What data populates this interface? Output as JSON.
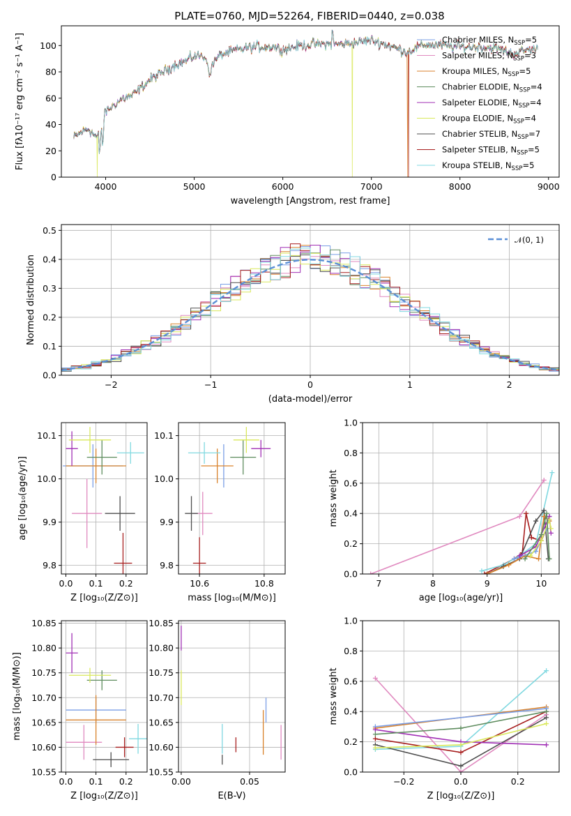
{
  "title": "PLATE=0760, MJD=52264, FIBERID=0440, z=0.038",
  "legend": [
    {
      "name": "Chabrier MILES, N",
      "sub": "SSP",
      "suffix": "=5",
      "color": "#7a9ee6"
    },
    {
      "name": "Salpeter MILES, N",
      "sub": "SSP",
      "suffix": "=3",
      "color": "#e089bf"
    },
    {
      "name": "Kroupa MILES, N",
      "sub": "SSP",
      "suffix": "=5",
      "color": "#d9822b"
    },
    {
      "name": "Chabrier ELODIE, N",
      "sub": "SSP",
      "suffix": "=4",
      "color": "#5e8c5e"
    },
    {
      "name": "Salpeter ELODIE, N",
      "sub": "SSP",
      "suffix": "=4",
      "color": "#a02fb5"
    },
    {
      "name": "Kroupa ELODIE, N",
      "sub": "SSP",
      "suffix": "=4",
      "color": "#d9e85a"
    },
    {
      "name": "Chabrier STELIB, N",
      "sub": "SSP",
      "suffix": "=7",
      "color": "#4d4d4d"
    },
    {
      "name": "Salpeter STELIB, N",
      "sub": "SSP",
      "suffix": "=5",
      "color": "#a61c1c"
    },
    {
      "name": "Kroupa STELIB, N",
      "sub": "SSP",
      "suffix": "=5",
      "color": "#7fd8e0"
    }
  ],
  "chart_data": [
    {
      "type": "line",
      "xlabel": "wavelength [Angstrom, rest frame]",
      "ylabel": "Flux [fλ10⁻¹⁷ erg cm⁻² s⁻¹ A⁻¹]",
      "xlim": [
        3500,
        9120
      ],
      "ylim": [
        0,
        115
      ],
      "xticks": [
        "4000",
        "5000",
        "6000",
        "7000",
        "8000",
        "9000"
      ],
      "yticks": [
        "0",
        "20",
        "40",
        "60",
        "80",
        "100"
      ],
      "spectrum_anchors": [
        [
          3640,
          30
        ],
        [
          3700,
          33
        ],
        [
          3800,
          37
        ],
        [
          3900,
          30
        ],
        [
          3950,
          35
        ],
        [
          4000,
          50
        ],
        [
          4100,
          55
        ],
        [
          4200,
          60
        ],
        [
          4300,
          62
        ],
        [
          4400,
          68
        ],
        [
          4500,
          74
        ],
        [
          4600,
          78
        ],
        [
          4700,
          82
        ],
        [
          4800,
          86
        ],
        [
          4900,
          88
        ],
        [
          5000,
          92
        ],
        [
          5100,
          92
        ],
        [
          5200,
          86
        ],
        [
          5300,
          93
        ],
        [
          5500,
          97
        ],
        [
          5700,
          99
        ],
        [
          5900,
          99
        ],
        [
          6000,
          97
        ],
        [
          6200,
          100
        ],
        [
          6400,
          101
        ],
        [
          6600,
          101
        ],
        [
          6800,
          102
        ],
        [
          7000,
          104
        ],
        [
          7200,
          100
        ],
        [
          7400,
          95
        ],
        [
          7600,
          101
        ],
        [
          7800,
          100
        ],
        [
          8000,
          99
        ],
        [
          8200,
          99
        ],
        [
          8400,
          98
        ],
        [
          8600,
          94
        ],
        [
          8800,
          97
        ],
        [
          8880,
          97
        ]
      ],
      "dropouts": [
        {
          "series": "Kroupa ELODIE",
          "at": 3905
        },
        {
          "series": "Kroupa ELODIE",
          "at": 6785
        },
        {
          "series": "Kroupa MILES",
          "at": 7410
        },
        {
          "series": "Salpeter STELIB",
          "at": 7420
        }
      ]
    },
    {
      "type": "histogram",
      "xlabel": "(data-model)/error",
      "ylabel": "Normed distribution",
      "xlim": [
        -2.5,
        2.5
      ],
      "ylim": [
        0,
        0.52
      ],
      "xticks": [
        "−2",
        "−1",
        "0",
        "1",
        "2"
      ],
      "yticks": [
        "0.0",
        "0.1",
        "0.2",
        "0.3",
        "0.4",
        "0.5"
      ],
      "bin_width": 0.1,
      "reference_label": "𝒩(0, 1)",
      "reference_color": "#5a8fd6"
    },
    {
      "type": "scatter",
      "xlabel": "Z [log₁₀(Z/Z⊙)]",
      "ylabel": "age  [log₁₀(age/yr)]",
      "xlim": [
        -0.015,
        0.27
      ],
      "ylim": [
        9.78,
        10.13
      ],
      "xticks": [
        "0.0",
        "0.1",
        "0.2"
      ],
      "yticks": [
        "9.8",
        "9.9",
        "10.0",
        "10.1"
      ],
      "points": [
        {
          "x": 0.09,
          "y": 10.03,
          "ex": 0.1,
          "ey": 0.05,
          "color": "#7a9ee6"
        },
        {
          "x": 0.07,
          "y": 9.92,
          "ex": 0.05,
          "ey": 0.08,
          "color": "#e089bf"
        },
        {
          "x": 0.1,
          "y": 10.03,
          "ex": 0.1,
          "ey": 0.04,
          "color": "#d9822b"
        },
        {
          "x": 0.12,
          "y": 10.05,
          "ex": 0.05,
          "ey": 0.04,
          "color": "#5e8c5e"
        },
        {
          "x": 0.02,
          "y": 10.07,
          "ex": 0.02,
          "ey": 0.04,
          "color": "#a02fb5"
        },
        {
          "x": 0.08,
          "y": 10.09,
          "ex": 0.07,
          "ey": 0.03,
          "color": "#d9e85a"
        },
        {
          "x": 0.18,
          "y": 9.92,
          "ex": 0.05,
          "ey": 0.04,
          "color": "#4d4d4d"
        },
        {
          "x": 0.19,
          "y": 9.805,
          "ex": 0.03,
          "ey": 0.07,
          "color": "#a61c1c"
        },
        {
          "x": 0.215,
          "y": 10.06,
          "ex": 0.045,
          "ey": 0.025,
          "color": "#7fd8e0"
        }
      ]
    },
    {
      "type": "scatter",
      "xlabel": "mass [log₁₀(M/M⊙)]",
      "ylabel": "",
      "xlim": [
        10.535,
        10.865
      ],
      "ylim": [
        9.78,
        10.13
      ],
      "xticks": [
        "10.6",
        "10.8"
      ],
      "yticks": [
        "9.8",
        "9.9",
        "10.0",
        "10.1"
      ],
      "points": [
        {
          "x": 10.675,
          "y": 10.03,
          "ex": 0.0,
          "ey": 0.05,
          "color": "#7a9ee6"
        },
        {
          "x": 10.61,
          "y": 9.92,
          "ex": 0.03,
          "ey": 0.05,
          "color": "#e089bf"
        },
        {
          "x": 10.655,
          "y": 10.03,
          "ex": 0.05,
          "ey": 0.04,
          "color": "#d9822b"
        },
        {
          "x": 10.735,
          "y": 10.05,
          "ex": 0.04,
          "ey": 0.04,
          "color": "#5e8c5e"
        },
        {
          "x": 10.79,
          "y": 10.07,
          "ex": 0.03,
          "ey": 0.02,
          "color": "#a02fb5"
        },
        {
          "x": 10.745,
          "y": 10.09,
          "ex": 0.04,
          "ey": 0.03,
          "color": "#d9e85a"
        },
        {
          "x": 10.575,
          "y": 9.92,
          "ex": 0.02,
          "ey": 0.04,
          "color": "#4d4d4d"
        },
        {
          "x": 10.6,
          "y": 9.805,
          "ex": 0.02,
          "ey": 0.06,
          "color": "#a61c1c"
        },
        {
          "x": 10.615,
          "y": 10.06,
          "ex": 0.05,
          "ey": 0.025,
          "color": "#7fd8e0"
        }
      ]
    },
    {
      "type": "line",
      "xlabel": "age  [log₁₀(age/yr)]",
      "ylabel": "mass weight",
      "xlim": [
        6.7,
        10.33
      ],
      "ylim": [
        0,
        1
      ],
      "xticks": [
        "7",
        "8",
        "9",
        "10"
      ],
      "yticks": [
        "0.0",
        "0.2",
        "0.4",
        "0.6",
        "0.8",
        "1.0"
      ],
      "series": [
        {
          "name": "Salpeter MILES",
          "color": "#e089bf",
          "points": [
            [
              6.85,
              0.0
            ],
            [
              9.6,
              0.38
            ],
            [
              10.05,
              0.62
            ]
          ]
        },
        {
          "name": "Salpeter STELIB",
          "color": "#a61c1c",
          "points": [
            [
              8.95,
              0.0
            ],
            [
              9.5,
              0.1
            ],
            [
              9.65,
              0.14
            ],
            [
              9.72,
              0.4
            ],
            [
              9.82,
              0.24
            ],
            [
              10.0,
              0.22
            ],
            [
              10.1,
              0.3
            ]
          ]
        },
        {
          "name": "Kroupa STELIB",
          "color": "#7fd8e0",
          "points": [
            [
              8.9,
              0.02
            ],
            [
              9.3,
              0.06
            ],
            [
              9.6,
              0.12
            ],
            [
              9.9,
              0.2
            ],
            [
              10.2,
              0.67
            ]
          ]
        },
        {
          "name": "Chabrier STELIB",
          "color": "#4d4d4d",
          "points": [
            [
              9.0,
              0.0
            ],
            [
              9.3,
              0.05
            ],
            [
              9.6,
              0.1
            ],
            [
              9.9,
              0.35
            ],
            [
              10.05,
              0.42
            ],
            [
              10.13,
              0.1
            ]
          ]
        },
        {
          "name": "Kroupa MILES",
          "color": "#d9822b",
          "points": [
            [
              9.0,
              0.0
            ],
            [
              9.4,
              0.06
            ],
            [
              9.7,
              0.12
            ],
            [
              9.95,
              0.1
            ],
            [
              10.05,
              0.38
            ],
            [
              10.15,
              0.35
            ]
          ]
        },
        {
          "name": "Chabrier MILES",
          "color": "#7a9ee6",
          "points": [
            [
              9.5,
              0.1
            ],
            [
              9.9,
              0.15
            ],
            [
              10.1,
              0.3
            ],
            [
              10.15,
              0.38
            ]
          ]
        },
        {
          "name": "Salpeter ELODIE",
          "color": "#a02fb5",
          "points": [
            [
              9.6,
              0.12
            ],
            [
              9.9,
              0.18
            ],
            [
              10.15,
              0.38
            ],
            [
              10.18,
              0.27
            ]
          ]
        },
        {
          "name": "Kroupa ELODIE",
          "color": "#d9e85a",
          "points": [
            [
              9.8,
              0.12
            ],
            [
              10.0,
              0.22
            ],
            [
              10.15,
              0.36
            ],
            [
              10.18,
              0.3
            ]
          ]
        },
        {
          "name": "Chabrier ELODIE",
          "color": "#5e8c5e",
          "points": [
            [
              9.7,
              0.1
            ],
            [
              10.0,
              0.26
            ],
            [
              10.1,
              0.4
            ],
            [
              10.15,
              0.1
            ]
          ]
        }
      ]
    },
    {
      "type": "scatter",
      "xlabel": "Z [log₁₀(Z/Z⊙)]",
      "ylabel": "mass [log₁₀(M/M⊙)]",
      "xlim": [
        -0.015,
        0.27
      ],
      "ylim": [
        10.55,
        10.855
      ],
      "xticks": [
        "0.0",
        "0.1",
        "0.2"
      ],
      "yticks": [
        "10.55",
        "10.60",
        "10.65",
        "10.70",
        "10.75",
        "10.80",
        "10.85"
      ],
      "points": [
        {
          "x": 0.1,
          "y": 10.675,
          "ex": 0.1,
          "ey": 0.025,
          "color": "#7a9ee6"
        },
        {
          "x": 0.06,
          "y": 10.61,
          "ex": 0.06,
          "ey": 0.035,
          "color": "#e089bf"
        },
        {
          "x": 0.1,
          "y": 10.655,
          "ex": 0.1,
          "ey": 0.05,
          "color": "#d9822b"
        },
        {
          "x": 0.12,
          "y": 10.735,
          "ex": 0.05,
          "ey": 0.02,
          "color": "#5e8c5e"
        },
        {
          "x": 0.02,
          "y": 10.79,
          "ex": 0.02,
          "ey": 0.04,
          "color": "#a02fb5"
        },
        {
          "x": 0.08,
          "y": 10.745,
          "ex": 0.07,
          "ey": 0.015,
          "color": "#d9e85a"
        },
        {
          "x": 0.15,
          "y": 10.575,
          "ex": 0.06,
          "ey": 0.015,
          "color": "#4d4d4d"
        },
        {
          "x": 0.195,
          "y": 10.6,
          "ex": 0.03,
          "ey": 0.02,
          "color": "#a61c1c"
        },
        {
          "x": 0.24,
          "y": 10.617,
          "ex": 0.03,
          "ey": 0.03,
          "color": "#7fd8e0"
        }
      ]
    },
    {
      "type": "scatter",
      "xlabel": "E(B-V)",
      "ylabel": "",
      "xlim": [
        -0.002,
        0.076
      ],
      "ylim": [
        10.55,
        10.855
      ],
      "xticks": [
        "0.00",
        "0.05"
      ],
      "yticks": [
        "10.55",
        "10.60",
        "10.65",
        "10.70",
        "10.75",
        "10.80",
        "10.85"
      ],
      "points": [
        {
          "x": 0.062,
          "y": 10.675,
          "ex": 0.0,
          "ey": 0.025,
          "color": "#7a9ee6"
        },
        {
          "x": 0.073,
          "y": 10.61,
          "ex": 0.0,
          "ey": 0.035,
          "color": "#e089bf"
        },
        {
          "x": 0.06,
          "y": 10.63,
          "ex": 0.0,
          "ey": 0.045,
          "color": "#d9822b"
        },
        {
          "x": 0.0,
          "y": 10.82,
          "ex": 0.0,
          "ey": 0.025,
          "color": "#a02fb5"
        },
        {
          "x": 0.0,
          "y": 10.72,
          "ex": 0.0,
          "ey": 0.035,
          "color": "#d9e85a"
        },
        {
          "x": 0.03,
          "y": 10.575,
          "ex": 0.0,
          "ey": 0.01,
          "color": "#4d4d4d"
        },
        {
          "x": 0.04,
          "y": 10.605,
          "ex": 0.0,
          "ey": 0.015,
          "color": "#a61c1c"
        },
        {
          "x": 0.03,
          "y": 10.617,
          "ex": 0.0,
          "ey": 0.03,
          "color": "#7fd8e0"
        }
      ]
    },
    {
      "type": "line",
      "xlabel": "Z [log₁₀(Z/Z⊙)]",
      "ylabel": "mass weight",
      "xlim": [
        -0.345,
        0.345
      ],
      "ylim": [
        0,
        1
      ],
      "xticks": [
        "−0.2",
        "0.0",
        "0.2"
      ],
      "yticks": [
        "0.0",
        "0.2",
        "0.4",
        "0.6",
        "0.8",
        "1.0"
      ],
      "series": [
        {
          "name": "Salpeter MILES",
          "color": "#e089bf",
          "points": [
            [
              -0.3,
              0.62
            ],
            [
              0.0,
              0.0
            ],
            [
              0.3,
              0.38
            ]
          ]
        },
        {
          "name": "Kroupa STELIB",
          "color": "#7fd8e0",
          "points": [
            [
              -0.3,
              0.15
            ],
            [
              0.0,
              0.17
            ],
            [
              0.3,
              0.67
            ]
          ]
        },
        {
          "name": "Chabrier STELIB",
          "color": "#4d4d4d",
          "points": [
            [
              -0.3,
              0.18
            ],
            [
              0.0,
              0.04
            ],
            [
              0.3,
              0.36
            ]
          ]
        },
        {
          "name": "Salpeter STELIB",
          "color": "#a61c1c",
          "points": [
            [
              -0.3,
              0.22
            ],
            [
              0.0,
              0.13
            ],
            [
              0.3,
              0.4
            ]
          ]
        },
        {
          "name": "Kroupa MILES",
          "color": "#d9822b",
          "points": [
            [
              -0.3,
              0.29
            ],
            [
              0.3,
              0.43
            ]
          ]
        },
        {
          "name": "Chabrier MILES",
          "color": "#7a9ee6",
          "points": [
            [
              -0.3,
              0.3
            ],
            [
              0.3,
              0.42
            ]
          ]
        },
        {
          "name": "Salpeter ELODIE",
          "color": "#a02fb5",
          "points": [
            [
              -0.3,
              0.28
            ],
            [
              0.0,
              0.2
            ],
            [
              0.3,
              0.18
            ]
          ]
        },
        {
          "name": "Kroupa ELODIE",
          "color": "#d9e85a",
          "points": [
            [
              -0.3,
              0.16
            ],
            [
              0.0,
              0.18
            ],
            [
              0.3,
              0.32
            ]
          ]
        },
        {
          "name": "Chabrier ELODIE",
          "color": "#5e8c5e",
          "points": [
            [
              -0.3,
              0.25
            ],
            [
              0.0,
              0.29
            ],
            [
              0.3,
              0.4
            ]
          ]
        }
      ]
    }
  ]
}
